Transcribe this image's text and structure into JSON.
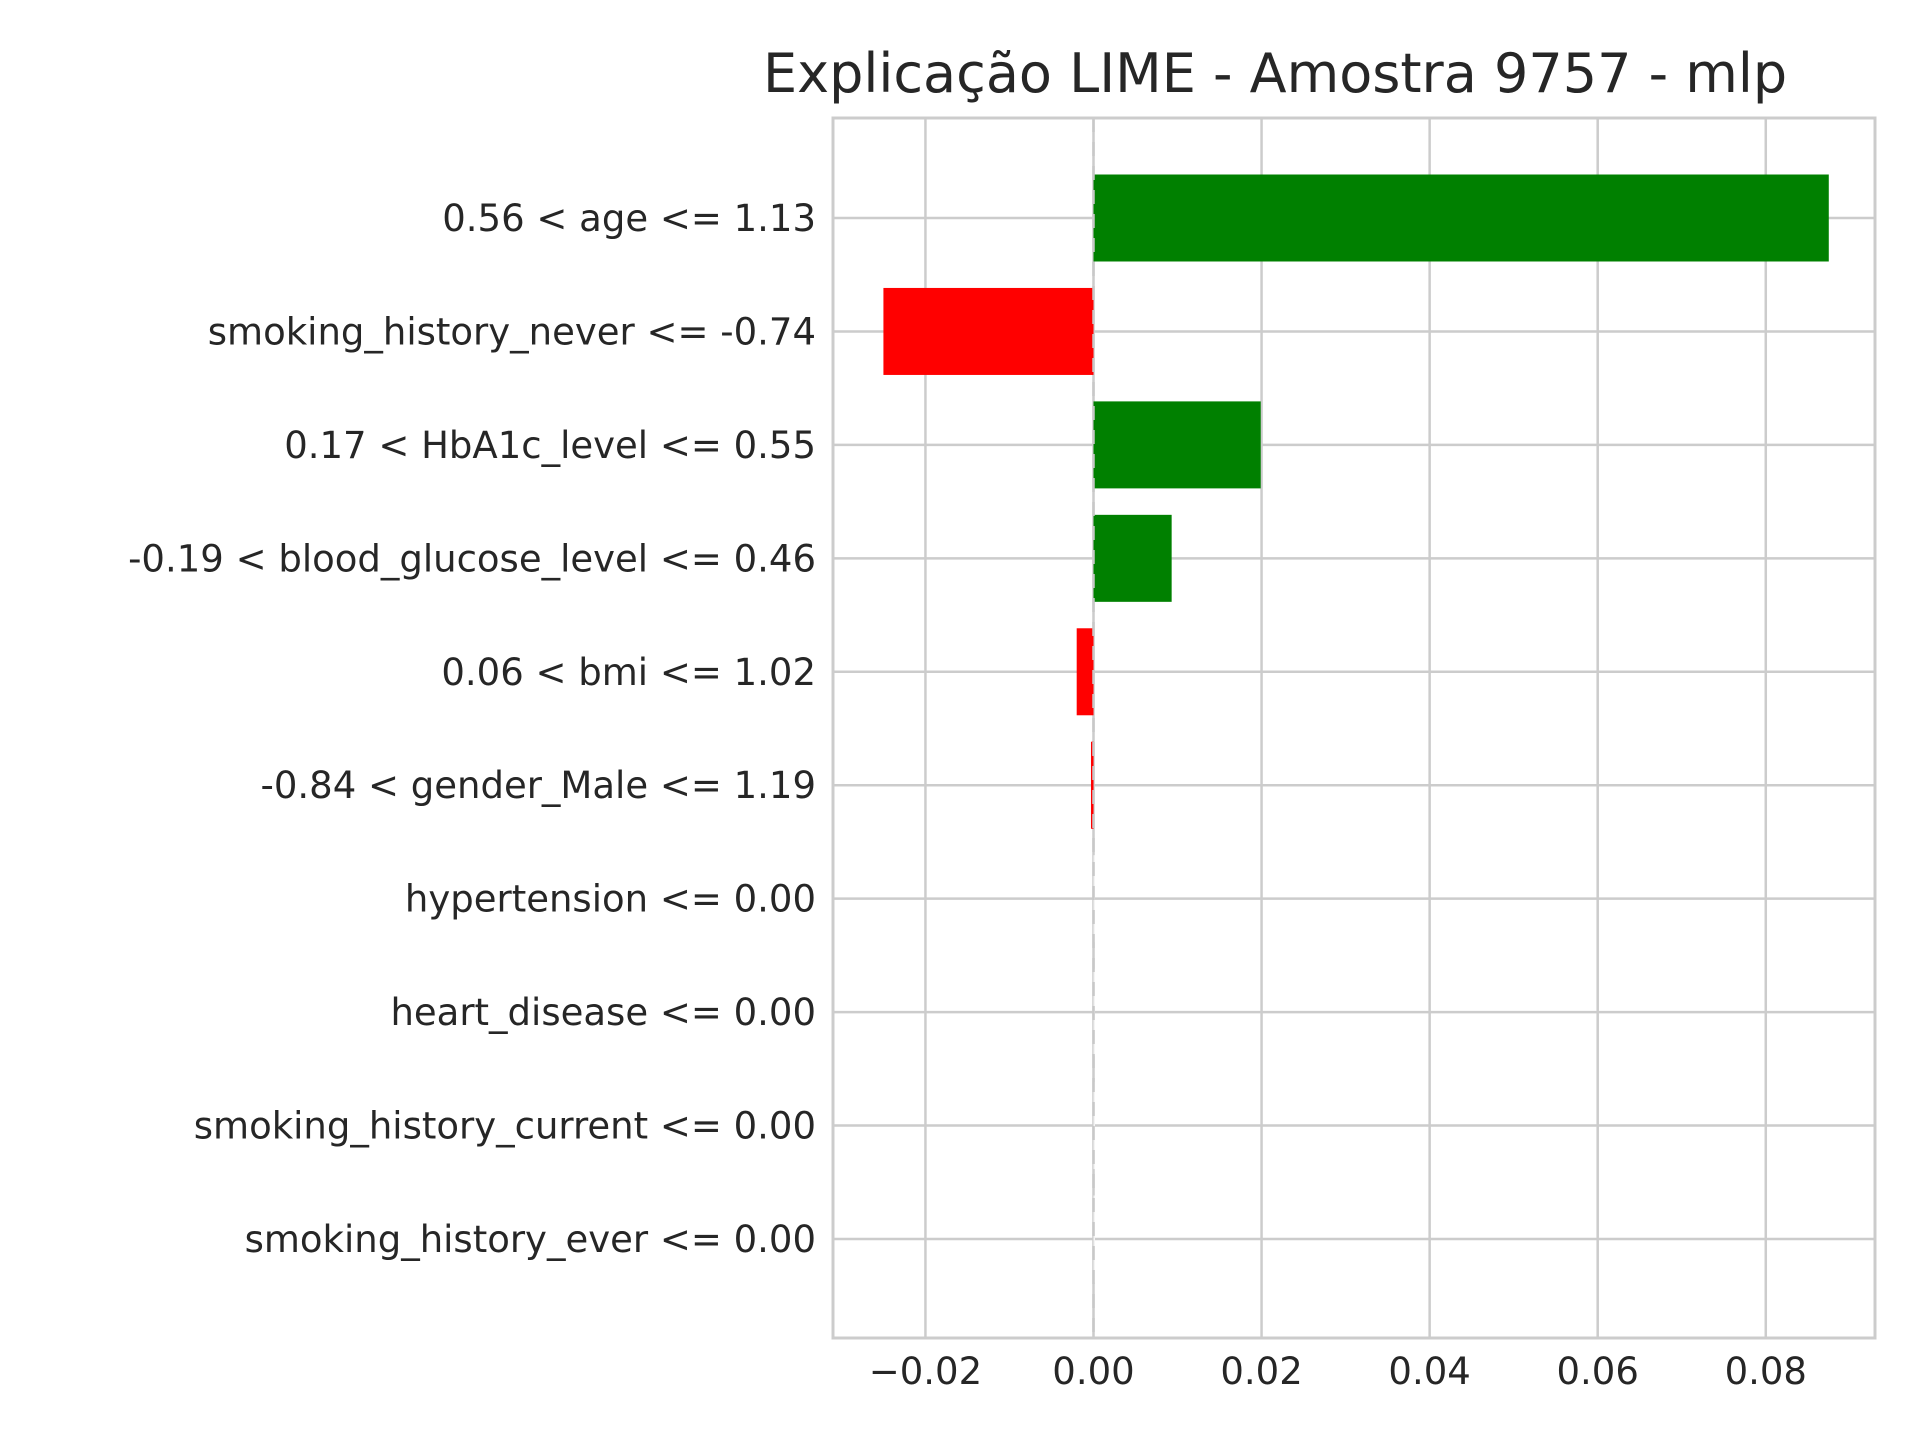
{
  "chart_data": {
    "type": "bar",
    "orientation": "horizontal",
    "title": "Explicação LIME - Amostra 9757 - mlp",
    "xlabel": "",
    "ylabel": "",
    "categories": [
      "0.56 < age <= 1.13",
      "smoking_history_never <= -0.74",
      "0.17 < HbA1c_level <= 0.55",
      "-0.19 < blood_glucose_level <= 0.46",
      "0.06 < bmi <= 1.02",
      "-0.84 < gender_Male <= 1.19",
      "hypertension <= 0.00",
      "heart_disease <= 0.00",
      "smoking_history_current <= 0.00",
      "smoking_history_ever <= 0.00"
    ],
    "values": [
      0.0875,
      -0.025,
      0.0199,
      0.0093,
      -0.002,
      -0.0003,
      0.0,
      0.0,
      0.0,
      0.0
    ],
    "xlim": [
      -0.031,
      0.093
    ],
    "xticks": [
      -0.02,
      0.0,
      0.02,
      0.04,
      0.06,
      0.08
    ],
    "xtick_labels": [
      "−0.02",
      "0.00",
      "0.02",
      "0.04",
      "0.06",
      "0.08"
    ],
    "positive_color": "#008000",
    "negative_color": "#ff0000",
    "grid": true,
    "zero_line": "dashed"
  }
}
